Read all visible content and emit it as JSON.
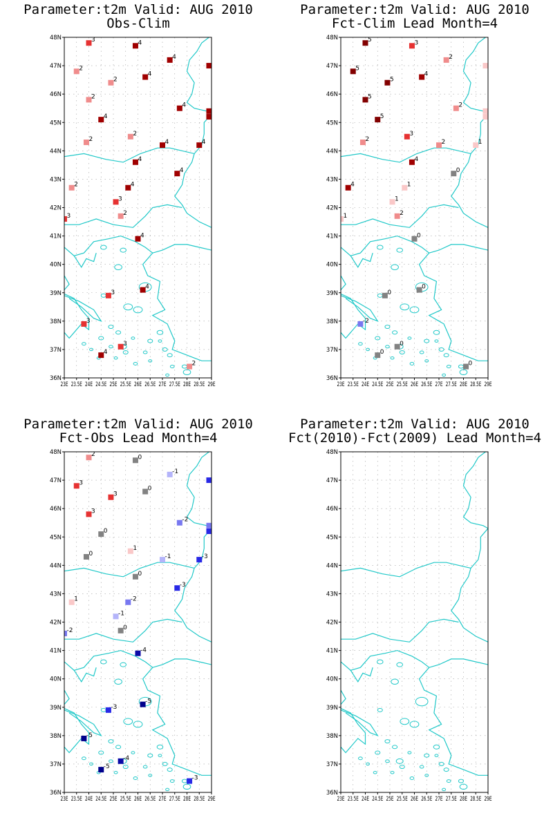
{
  "axis": {
    "lon_labels": [
      "23E",
      "23.5E",
      "24E",
      "24.5E",
      "25E",
      "25.5E",
      "26E",
      "26.5E",
      "27E",
      "27.5E",
      "28E",
      "28.5E",
      "29E"
    ],
    "lat_labels": [
      "36N",
      "37N",
      "38N",
      "39N",
      "40N",
      "41N",
      "42N",
      "43N",
      "44N",
      "45N",
      "46N",
      "47N",
      "48N"
    ],
    "lon_range": [
      23,
      29
    ],
    "lat_range": [
      36,
      48
    ]
  },
  "colors": {
    "coast": "#1fc8c8",
    "grid": "#a0a0a0",
    "scale": {
      "-5": "#00008c",
      "-4": "#0a0aa6",
      "-3": "#2828e6",
      "-2": "#7878f0",
      "-1": "#b4b4fa",
      "0": "#828282",
      "1": "#fac8c8",
      "2": "#f08c8c",
      "3": "#e63232",
      "4": "#a00000",
      "5": "#820000"
    }
  },
  "panels": [
    {
      "title1": "Parameter:t2m Valid: AUG 2010",
      "title2": "Obs-Clim",
      "stations": [
        {
          "lon": 24.0,
          "lat": 47.8,
          "v": 3
        },
        {
          "lon": 25.9,
          "lat": 47.7,
          "v": 4
        },
        {
          "lon": 23.5,
          "lat": 46.8,
          "v": 2
        },
        {
          "lon": 26.3,
          "lat": 46.6,
          "v": 4
        },
        {
          "lon": 27.3,
          "lat": 47.2,
          "v": 4
        },
        {
          "lon": 28.9,
          "lat": 47.0,
          "v": 4
        },
        {
          "lon": 24.9,
          "lat": 46.4,
          "v": 2
        },
        {
          "lon": 24.0,
          "lat": 45.8,
          "v": 2
        },
        {
          "lon": 27.7,
          "lat": 45.5,
          "v": 4
        },
        {
          "lon": 28.9,
          "lat": 45.4,
          "v": 4
        },
        {
          "lon": 28.9,
          "lat": 45.2,
          "v": 4
        },
        {
          "lon": 24.5,
          "lat": 45.1,
          "v": 4
        },
        {
          "lon": 23.9,
          "lat": 44.3,
          "v": 2
        },
        {
          "lon": 25.7,
          "lat": 44.5,
          "v": 2
        },
        {
          "lon": 27.0,
          "lat": 44.2,
          "v": 4
        },
        {
          "lon": 28.5,
          "lat": 44.2,
          "v": 4
        },
        {
          "lon": 25.9,
          "lat": 43.6,
          "v": 4
        },
        {
          "lon": 27.6,
          "lat": 43.2,
          "v": 4
        },
        {
          "lon": 23.3,
          "lat": 42.7,
          "v": 2
        },
        {
          "lon": 25.6,
          "lat": 42.7,
          "v": 4
        },
        {
          "lon": 25.1,
          "lat": 42.2,
          "v": 3
        },
        {
          "lon": 25.3,
          "lat": 41.7,
          "v": 2
        },
        {
          "lon": 23.0,
          "lat": 41.6,
          "v": 3
        },
        {
          "lon": 26.0,
          "lat": 40.9,
          "v": 4
        },
        {
          "lon": 24.8,
          "lat": 38.9,
          "v": 3
        },
        {
          "lon": 26.2,
          "lat": 39.1,
          "v": 4
        },
        {
          "lon": 23.8,
          "lat": 37.9,
          "v": 3
        },
        {
          "lon": 25.3,
          "lat": 37.1,
          "v": 3
        },
        {
          "lon": 24.5,
          "lat": 36.8,
          "v": 4
        },
        {
          "lon": 28.1,
          "lat": 36.4,
          "v": 2
        }
      ]
    },
    {
      "title1": "Parameter:t2m Valid: AUG 2010",
      "title2": "Fct-Clim Lead Month=4",
      "stations": [
        {
          "lon": 24.0,
          "lat": 47.8,
          "v": 5
        },
        {
          "lon": 25.9,
          "lat": 47.7,
          "v": 3
        },
        {
          "lon": 23.5,
          "lat": 46.8,
          "v": 5
        },
        {
          "lon": 26.3,
          "lat": 46.6,
          "v": 4
        },
        {
          "lon": 27.3,
          "lat": 47.2,
          "v": 2
        },
        {
          "lon": 28.9,
          "lat": 47.0,
          "v": 1
        },
        {
          "lon": 24.9,
          "lat": 46.4,
          "v": 5
        },
        {
          "lon": 24.0,
          "lat": 45.8,
          "v": 5
        },
        {
          "lon": 27.7,
          "lat": 45.5,
          "v": 2
        },
        {
          "lon": 28.9,
          "lat": 45.4,
          "v": 1
        },
        {
          "lon": 28.9,
          "lat": 45.2,
          "v": 1
        },
        {
          "lon": 24.5,
          "lat": 45.1,
          "v": 5
        },
        {
          "lon": 23.9,
          "lat": 44.3,
          "v": 2
        },
        {
          "lon": 25.7,
          "lat": 44.5,
          "v": 3
        },
        {
          "lon": 27.0,
          "lat": 44.2,
          "v": 2
        },
        {
          "lon": 28.5,
          "lat": 44.2,
          "v": 1
        },
        {
          "lon": 25.9,
          "lat": 43.6,
          "v": 4
        },
        {
          "lon": 27.6,
          "lat": 43.2,
          "v": 0
        },
        {
          "lon": 23.3,
          "lat": 42.7,
          "v": 4
        },
        {
          "lon": 25.6,
          "lat": 42.7,
          "v": 1
        },
        {
          "lon": 25.1,
          "lat": 42.2,
          "v": 1
        },
        {
          "lon": 25.3,
          "lat": 41.7,
          "v": 2
        },
        {
          "lon": 23.0,
          "lat": 41.6,
          "v": 1
        },
        {
          "lon": 26.0,
          "lat": 40.9,
          "v": 0
        },
        {
          "lon": 24.8,
          "lat": 38.9,
          "v": 0
        },
        {
          "lon": 26.2,
          "lat": 39.1,
          "v": 0
        },
        {
          "lon": 23.8,
          "lat": 37.9,
          "v": -2
        },
        {
          "lon": 25.3,
          "lat": 37.1,
          "v": 0
        },
        {
          "lon": 24.5,
          "lat": 36.8,
          "v": 0
        },
        {
          "lon": 28.1,
          "lat": 36.4,
          "v": 0
        }
      ]
    },
    {
      "title1": "Parameter:t2m Valid: AUG 2010",
      "title2": "Fct-Obs Lead Month=4",
      "stations": [
        {
          "lon": 24.0,
          "lat": 47.8,
          "v": 2
        },
        {
          "lon": 25.9,
          "lat": 47.7,
          "v": 0
        },
        {
          "lon": 23.5,
          "lat": 46.8,
          "v": 3
        },
        {
          "lon": 26.3,
          "lat": 46.6,
          "v": 0
        },
        {
          "lon": 27.3,
          "lat": 47.2,
          "v": -1
        },
        {
          "lon": 28.9,
          "lat": 47.0,
          "v": -3
        },
        {
          "lon": 24.9,
          "lat": 46.4,
          "v": 3
        },
        {
          "lon": 24.0,
          "lat": 45.8,
          "v": 3
        },
        {
          "lon": 27.7,
          "lat": 45.5,
          "v": -2
        },
        {
          "lon": 28.9,
          "lat": 45.4,
          "v": -2
        },
        {
          "lon": 28.9,
          "lat": 45.2,
          "v": -3
        },
        {
          "lon": 24.5,
          "lat": 45.1,
          "v": 0
        },
        {
          "lon": 23.9,
          "lat": 44.3,
          "v": 0
        },
        {
          "lon": 25.7,
          "lat": 44.5,
          "v": 1
        },
        {
          "lon": 27.0,
          "lat": 44.2,
          "v": -1
        },
        {
          "lon": 28.5,
          "lat": 44.2,
          "v": -3
        },
        {
          "lon": 25.9,
          "lat": 43.6,
          "v": 0
        },
        {
          "lon": 27.6,
          "lat": 43.2,
          "v": -3
        },
        {
          "lon": 23.3,
          "lat": 42.7,
          "v": 1
        },
        {
          "lon": 25.6,
          "lat": 42.7,
          "v": -2
        },
        {
          "lon": 25.1,
          "lat": 42.2,
          "v": -1
        },
        {
          "lon": 25.3,
          "lat": 41.7,
          "v": 0
        },
        {
          "lon": 23.0,
          "lat": 41.6,
          "v": -2
        },
        {
          "lon": 26.0,
          "lat": 40.9,
          "v": -4
        },
        {
          "lon": 24.8,
          "lat": 38.9,
          "v": -3
        },
        {
          "lon": 26.2,
          "lat": 39.1,
          "v": -5
        },
        {
          "lon": 23.8,
          "lat": 37.9,
          "v": -5
        },
        {
          "lon": 25.3,
          "lat": 37.1,
          "v": -4
        },
        {
          "lon": 24.5,
          "lat": 36.8,
          "v": -5
        },
        {
          "lon": 28.1,
          "lat": 36.4,
          "v": -3
        }
      ]
    },
    {
      "title1": "Parameter:t2m Valid: AUG 2010",
      "title2": "Fct(2010)-Fct(2009) Lead Month=4",
      "stations": []
    }
  ]
}
